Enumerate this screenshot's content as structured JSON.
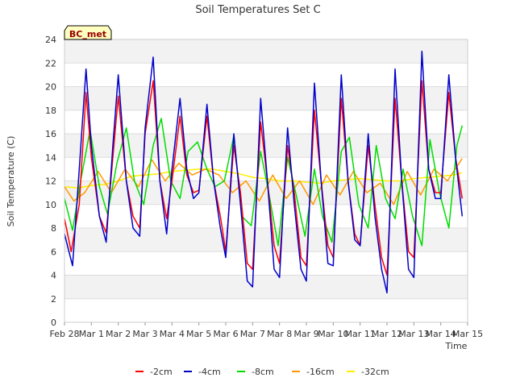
{
  "chart_data": {
    "type": "line",
    "title": "Soil Temperatures Set C",
    "xlabel": "Time",
    "ylabel": "Soil Temperature (C)",
    "station_badge": "BC_met",
    "x_tick_labels": [
      "Feb 28",
      "Mar 1",
      "Mar 2",
      "Mar 3",
      "Mar 4",
      "Mar 5",
      "Mar 6",
      "Mar 7",
      "Mar 8",
      "Mar 9",
      "Mar 10",
      "Mar 11",
      "Mar 12",
      "Mar 13",
      "Mar 14",
      "Mar 15"
    ],
    "x_unit": "day (Feb 28 = 0)",
    "xlim": [
      0,
      15
    ],
    "ylim": [
      0,
      24
    ],
    "y_ticks": [
      0,
      2,
      4,
      6,
      8,
      10,
      12,
      14,
      16,
      18,
      20,
      22,
      24
    ],
    "grid": true,
    "legend_position": "bottom",
    "series": [
      {
        "name": "-2cm",
        "color": "#ff0000",
        "x": [
          0.0,
          0.25,
          0.55,
          0.8,
          1.0,
          1.3,
          1.55,
          1.8,
          2.0,
          2.3,
          2.55,
          2.8,
          3.0,
          3.3,
          3.55,
          3.8,
          4.0,
          4.3,
          4.55,
          4.8,
          5.0,
          5.3,
          5.55,
          5.8,
          6.0,
          6.3,
          6.55,
          6.8,
          7.0,
          7.3,
          7.55,
          7.8,
          8.0,
          8.3,
          8.55,
          8.8,
          9.0,
          9.3,
          9.55,
          9.8,
          10.0,
          10.3,
          10.55,
          10.8,
          11.0,
          11.3,
          11.55,
          11.8,
          12.0,
          12.3,
          12.55,
          12.8,
          13.0,
          13.3,
          13.55,
          13.8,
          14.0,
          14.3,
          14.55,
          14.8
        ],
        "y": [
          8.8,
          6.0,
          10.0,
          19.5,
          14.0,
          9.0,
          7.6,
          14.0,
          19.2,
          12.0,
          9.0,
          8.0,
          16.0,
          20.5,
          12.0,
          8.8,
          12.0,
          17.5,
          12.5,
          11.0,
          11.2,
          17.5,
          12.0,
          9.0,
          6.0,
          15.0,
          11.0,
          5.0,
          4.5,
          17.0,
          12.0,
          6.5,
          5.0,
          15.0,
          11.0,
          5.5,
          4.8,
          18.0,
          12.0,
          6.5,
          5.5,
          19.0,
          12.0,
          7.5,
          6.5,
          15.0,
          10.0,
          5.5,
          4.0,
          19.0,
          12.0,
          6.0,
          5.5,
          20.5,
          13.0,
          11.0,
          11.0,
          19.5,
          14.0,
          10.5
        ]
      },
      {
        "name": "-4cm",
        "color": "#0000cc",
        "x": [
          0.0,
          0.3,
          0.55,
          0.8,
          1.0,
          1.3,
          1.55,
          1.8,
          2.0,
          2.3,
          2.55,
          2.8,
          3.0,
          3.3,
          3.55,
          3.8,
          4.0,
          4.3,
          4.55,
          4.8,
          5.0,
          5.3,
          5.55,
          5.8,
          6.0,
          6.3,
          6.55,
          6.8,
          7.0,
          7.3,
          7.55,
          7.8,
          8.0,
          8.3,
          8.55,
          8.8,
          9.0,
          9.3,
          9.55,
          9.8,
          10.0,
          10.3,
          10.55,
          10.8,
          11.0,
          11.3,
          11.55,
          11.8,
          12.0,
          12.3,
          12.55,
          12.8,
          13.0,
          13.3,
          13.55,
          13.8,
          14.0,
          14.3,
          14.55,
          14.8
        ],
        "y": [
          7.5,
          4.8,
          13.0,
          21.5,
          15.0,
          9.0,
          6.8,
          15.0,
          21.0,
          12.0,
          8.0,
          7.3,
          16.5,
          22.5,
          12.0,
          7.5,
          13.0,
          19.0,
          13.0,
          10.5,
          11.0,
          18.5,
          12.0,
          8.0,
          5.5,
          16.0,
          10.0,
          3.5,
          3.0,
          19.0,
          12.0,
          4.5,
          3.8,
          16.5,
          10.0,
          4.5,
          3.5,
          20.3,
          12.0,
          5.0,
          4.8,
          21.0,
          12.0,
          7.0,
          6.5,
          16.0,
          9.0,
          4.5,
          2.5,
          21.5,
          12.0,
          4.5,
          3.8,
          23.0,
          13.0,
          10.5,
          10.5,
          21.0,
          14.0,
          9.0
        ]
      },
      {
        "name": "-8cm",
        "color": "#00dd00",
        "x": [
          0.0,
          0.3,
          0.6,
          0.95,
          1.3,
          1.6,
          1.95,
          2.3,
          2.6,
          2.95,
          3.3,
          3.6,
          3.95,
          4.3,
          4.6,
          4.95,
          5.3,
          5.6,
          5.95,
          6.3,
          6.6,
          6.95,
          7.3,
          7.6,
          7.95,
          8.3,
          8.6,
          8.95,
          9.3,
          9.6,
          9.95,
          10.3,
          10.6,
          10.95,
          11.3,
          11.6,
          11.95,
          12.3,
          12.6,
          12.95,
          13.3,
          13.6,
          13.95,
          14.3,
          14.6,
          14.8
        ],
        "y": [
          10.5,
          7.8,
          12.0,
          16.3,
          11.5,
          9.2,
          13.5,
          16.5,
          12.0,
          10.0,
          15.0,
          17.3,
          12.0,
          10.5,
          14.5,
          15.3,
          13.0,
          11.5,
          12.0,
          15.8,
          9.0,
          8.2,
          14.5,
          11.0,
          6.5,
          14.0,
          11.0,
          7.3,
          13.0,
          9.0,
          6.8,
          14.5,
          15.7,
          10.0,
          8.0,
          15.0,
          10.5,
          8.8,
          13.0,
          9.0,
          6.5,
          15.5,
          11.0,
          8.0,
          15.0,
          16.7
        ]
      },
      {
        "name": "-16cm",
        "color": "#ff9900",
        "x": [
          0.0,
          0.35,
          0.75,
          1.25,
          1.75,
          2.25,
          2.75,
          3.25,
          3.75,
          4.25,
          4.75,
          5.25,
          5.75,
          6.25,
          6.75,
          7.25,
          7.75,
          8.25,
          8.75,
          9.25,
          9.75,
          10.25,
          10.75,
          11.25,
          11.75,
          12.25,
          12.75,
          13.25,
          13.75,
          14.25,
          14.8
        ],
        "y": [
          11.5,
          10.3,
          11.0,
          12.8,
          11.0,
          13.0,
          11.5,
          13.8,
          12.0,
          13.5,
          12.5,
          13.0,
          12.5,
          11.0,
          12.0,
          10.3,
          12.5,
          10.5,
          12.0,
          10.0,
          12.5,
          10.8,
          12.8,
          11.0,
          11.8,
          10.0,
          12.8,
          10.8,
          13.0,
          12.0,
          13.9
        ]
      },
      {
        "name": "-32cm",
        "color": "#ffee00",
        "x": [
          0.0,
          0.5,
          1.0,
          1.5,
          2.0,
          2.5,
          3.0,
          3.5,
          4.0,
          4.5,
          5.0,
          5.5,
          6.0,
          6.5,
          7.0,
          7.5,
          8.0,
          8.5,
          9.0,
          9.5,
          10.0,
          10.5,
          11.0,
          11.5,
          12.0,
          12.5,
          13.0,
          13.5,
          14.0,
          14.5,
          14.8
        ],
        "y": [
          11.5,
          11.4,
          11.6,
          11.7,
          12.0,
          12.4,
          12.5,
          12.6,
          12.8,
          12.9,
          13.0,
          13.0,
          12.8,
          12.6,
          12.3,
          12.2,
          12.0,
          12.0,
          11.9,
          11.8,
          12.0,
          12.1,
          12.2,
          12.1,
          12.0,
          12.0,
          12.2,
          12.3,
          12.4,
          12.5,
          12.7
        ]
      }
    ]
  }
}
